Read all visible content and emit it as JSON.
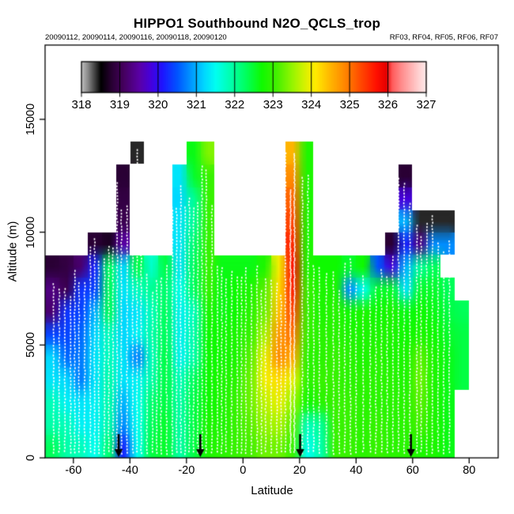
{
  "title": "HIPPO1 Southbound N2O_QCLS_trop",
  "subtitle_left": "20090112, 20090114, 20090116, 20090118, 20090120",
  "subtitle_right": "RF03, RF04, RF05, RF06, RF07",
  "colors": {
    "background": "#ffffff",
    "frame": "#000000",
    "profile_dots": "#ffffff",
    "arrow": "#000000"
  },
  "chart_data": {
    "type": "heatmap",
    "title": "HIPPO1 Southbound N2O_QCLS_trop",
    "xlabel": "Latitude",
    "ylabel": "Altitude (m)",
    "x_ticks": [
      -60,
      -40,
      -20,
      0,
      20,
      40,
      60,
      80
    ],
    "y_ticks": [
      0,
      5000,
      10000,
      15000
    ],
    "xlim": [
      -70,
      90
    ],
    "ylim": [
      0,
      18300
    ],
    "colorbar": {
      "min": 318,
      "max": 327,
      "tick_values": [
        318,
        319,
        320,
        321,
        322,
        323,
        324,
        325,
        326,
        327
      ],
      "stops": [
        [
          318.0,
          "#BEBEBE"
        ],
        [
          318.15,
          "#8C8C8C"
        ],
        [
          318.3,
          "#505050"
        ],
        [
          318.5,
          "#000000"
        ],
        [
          318.8,
          "#2B0036"
        ],
        [
          319.1,
          "#45005F"
        ],
        [
          319.5,
          "#5A00A5"
        ],
        [
          319.8,
          "#4600DC"
        ],
        [
          320.1,
          "#1E14FF"
        ],
        [
          320.5,
          "#0055FF"
        ],
        [
          320.9,
          "#00A0FF"
        ],
        [
          321.2,
          "#00D8FF"
        ],
        [
          321.5,
          "#00FFF0"
        ],
        [
          321.9,
          "#00FFAA"
        ],
        [
          322.3,
          "#00FF5A"
        ],
        [
          322.7,
          "#0FFA00"
        ],
        [
          323.1,
          "#46F000"
        ],
        [
          323.5,
          "#96F500"
        ],
        [
          323.9,
          "#E6F000"
        ],
        [
          324.1,
          "#FFEB00"
        ],
        [
          324.5,
          "#FFB400"
        ],
        [
          324.9,
          "#FF8200"
        ],
        [
          325.3,
          "#FF4600"
        ],
        [
          325.7,
          "#FF0F00"
        ],
        [
          325.95,
          "#E60000"
        ],
        [
          326.1,
          "#FF5A5A"
        ],
        [
          326.35,
          "#FF8C8C"
        ],
        [
          326.6,
          "#FFB4B4"
        ],
        [
          326.8,
          "#FFD2D2"
        ],
        [
          327.0,
          "#FFECEC"
        ]
      ]
    },
    "grid": {
      "lat_bin_deg": 5,
      "alt_bin_m": 1000,
      "lat_centers": [
        -67.5,
        -62.5,
        -57.5,
        -52.5,
        -47.5,
        -42.5,
        -37.5,
        -32.5,
        -27.5,
        -22.5,
        -17.5,
        -12.5,
        -7.5,
        -2.5,
        2.5,
        7.5,
        12.5,
        17.5,
        22.5,
        27.5,
        32.5,
        37.5,
        42.5,
        47.5,
        52.5,
        57.5,
        62.5,
        67.5,
        72.5,
        77.5
      ],
      "alt_centers_desc": [
        13500,
        12500,
        11500,
        10500,
        9500,
        8500,
        7500,
        6500,
        5500,
        4500,
        3500,
        2500,
        1500,
        500
      ],
      "values_by_alt_desc": [
        [
          null,
          null,
          null,
          null,
          null,
          null,
          318.4,
          null,
          null,
          null,
          322.6,
          323.4,
          null,
          null,
          null,
          null,
          null,
          324.5,
          322.8,
          null,
          null,
          null,
          null,
          null,
          null,
          null,
          null,
          null,
          null,
          null
        ],
        [
          null,
          null,
          null,
          null,
          null,
          318.8,
          null,
          null,
          null,
          321.3,
          322.5,
          323.0,
          null,
          null,
          null,
          null,
          null,
          324.8,
          322.8,
          null,
          null,
          null,
          null,
          null,
          null,
          318.8,
          null,
          null,
          null,
          null
        ],
        [
          null,
          null,
          null,
          null,
          null,
          318.9,
          null,
          null,
          null,
          321.2,
          322.0,
          323.0,
          null,
          null,
          null,
          null,
          null,
          325.1,
          322.8,
          null,
          null,
          null,
          null,
          null,
          null,
          319.8,
          null,
          null,
          null,
          null
        ],
        [
          null,
          null,
          null,
          null,
          null,
          319.0,
          null,
          null,
          null,
          321.3,
          322.0,
          323.0,
          null,
          null,
          null,
          null,
          null,
          325.3,
          322.8,
          null,
          null,
          null,
          null,
          null,
          null,
          321.0,
          318.4,
          318.4,
          318.4,
          null
        ],
        [
          null,
          null,
          null,
          318.8,
          318.7,
          319.5,
          null,
          null,
          null,
          321.3,
          322.2,
          323.0,
          null,
          null,
          null,
          null,
          null,
          325.5,
          322.8,
          null,
          null,
          null,
          null,
          null,
          318.8,
          320.2,
          319.3,
          320.8,
          320.8,
          null
        ],
        [
          318.8,
          318.9,
          319.2,
          320.2,
          322.3,
          321.2,
          322.4,
          321.7,
          322.4,
          321.3,
          322.3,
          323.0,
          322.6,
          322.6,
          322.6,
          322.8,
          324.0,
          325.7,
          322.8,
          322.7,
          322.7,
          322.5,
          322.7,
          320.5,
          319.8,
          321.0,
          322.0,
          322.3,
          null,
          null
        ],
        [
          319.3,
          319.0,
          320.3,
          320.4,
          322.3,
          321.3,
          321.8,
          322.0,
          322.2,
          321.5,
          322.3,
          323.0,
          322.6,
          322.7,
          322.8,
          323.2,
          324.2,
          325.6,
          323.0,
          322.8,
          322.8,
          320.8,
          321.5,
          322.5,
          322.5,
          321.3,
          322.5,
          322.5,
          322.3,
          null
        ],
        [
          319.2,
          320.3,
          320.4,
          321.0,
          322.3,
          321.2,
          321.3,
          321.8,
          322.3,
          321.4,
          321.8,
          322.8,
          322.6,
          322.7,
          322.9,
          323.3,
          324.4,
          325.3,
          323.0,
          322.8,
          322.9,
          322.7,
          322.8,
          322.7,
          322.8,
          322.6,
          322.7,
          322.6,
          322.4,
          322.3
        ],
        [
          320.4,
          320.4,
          320.6,
          321.2,
          321.8,
          321.2,
          321.4,
          321.9,
          322.3,
          321.4,
          321.9,
          322.7,
          322.7,
          322.8,
          323.0,
          323.6,
          324.7,
          325.0,
          323.0,
          322.9,
          322.9,
          322.8,
          322.8,
          322.8,
          322.8,
          322.7,
          322.8,
          322.7,
          322.5,
          322.4
        ],
        [
          321.2,
          320.6,
          320.7,
          321.3,
          321.8,
          321.3,
          320.7,
          321.8,
          322.4,
          321.4,
          321.9,
          322.7,
          322.7,
          322.8,
          323.2,
          323.9,
          324.8,
          324.6,
          322.9,
          322.9,
          323.0,
          322.9,
          322.8,
          322.9,
          322.8,
          322.8,
          323.2,
          322.8,
          322.6,
          322.4
        ],
        [
          321.3,
          321.2,
          320.7,
          321.3,
          321.9,
          321.3,
          321.4,
          321.9,
          322.4,
          321.8,
          322.3,
          322.7,
          322.8,
          322.9,
          323.3,
          324.0,
          324.2,
          323.9,
          322.9,
          323.0,
          323.0,
          322.9,
          322.9,
          322.9,
          322.9,
          322.8,
          323.3,
          322.8,
          322.6,
          322.4
        ],
        [
          321.8,
          321.4,
          321.3,
          321.4,
          321.9,
          321.0,
          321.5,
          322.2,
          322.4,
          321.9,
          322.4,
          322.7,
          322.8,
          323.0,
          323.3,
          323.7,
          323.9,
          323.5,
          322.7,
          322.9,
          323.0,
          323.0,
          322.9,
          322.9,
          322.9,
          322.9,
          323.2,
          322.8,
          322.6,
          null
        ],
        [
          321.9,
          321.8,
          321.4,
          321.4,
          321.9,
          320.8,
          321.5,
          322.3,
          322.5,
          321.9,
          322.4,
          322.8,
          322.8,
          323.0,
          323.2,
          323.5,
          323.6,
          323.2,
          321.8,
          322.0,
          323.0,
          323.0,
          322.9,
          323.0,
          322.9,
          322.9,
          323.1,
          322.8,
          322.6,
          null
        ],
        [
          322.3,
          321.9,
          321.8,
          321.5,
          322.2,
          320.2,
          321.5,
          322.4,
          322.5,
          321.9,
          322.4,
          322.8,
          322.9,
          323.0,
          323.1,
          323.3,
          323.3,
          323.0,
          321.5,
          321.9,
          323.0,
          323.0,
          322.9,
          323.0,
          322.9,
          322.9,
          322.8,
          322.8,
          322.6,
          null
        ]
      ]
    },
    "profile_line_latitudes": [
      -67,
      -65,
      -63,
      -61,
      -59.5,
      -58,
      -56,
      -54,
      -52.5,
      -51,
      -49,
      -47.5,
      -46,
      -44.5,
      -43,
      -41,
      -39,
      -37.5,
      -36,
      -34,
      -32,
      -30.5,
      -29,
      -27,
      -25,
      -23.5,
      -22,
      -20.5,
      -19,
      -17.5,
      -16,
      -14.5,
      -13,
      -11,
      -9,
      -7.5,
      -6,
      -4,
      -2,
      -0.5,
      1,
      3,
      5,
      6.5,
      8,
      10,
      12,
      13.5,
      15,
      16.8,
      18.2,
      21,
      23,
      25,
      27,
      29.5,
      32,
      34,
      36,
      38,
      40,
      42.5,
      45,
      47,
      49,
      51,
      53,
      55,
      57,
      59,
      61.5,
      63,
      65,
      67,
      69,
      71,
      73
    ],
    "arrow_latitudes": [
      -44,
      -15.1,
      20.2,
      59.4
    ],
    "legend_position": "top-inside",
    "grid_lines": "off"
  }
}
